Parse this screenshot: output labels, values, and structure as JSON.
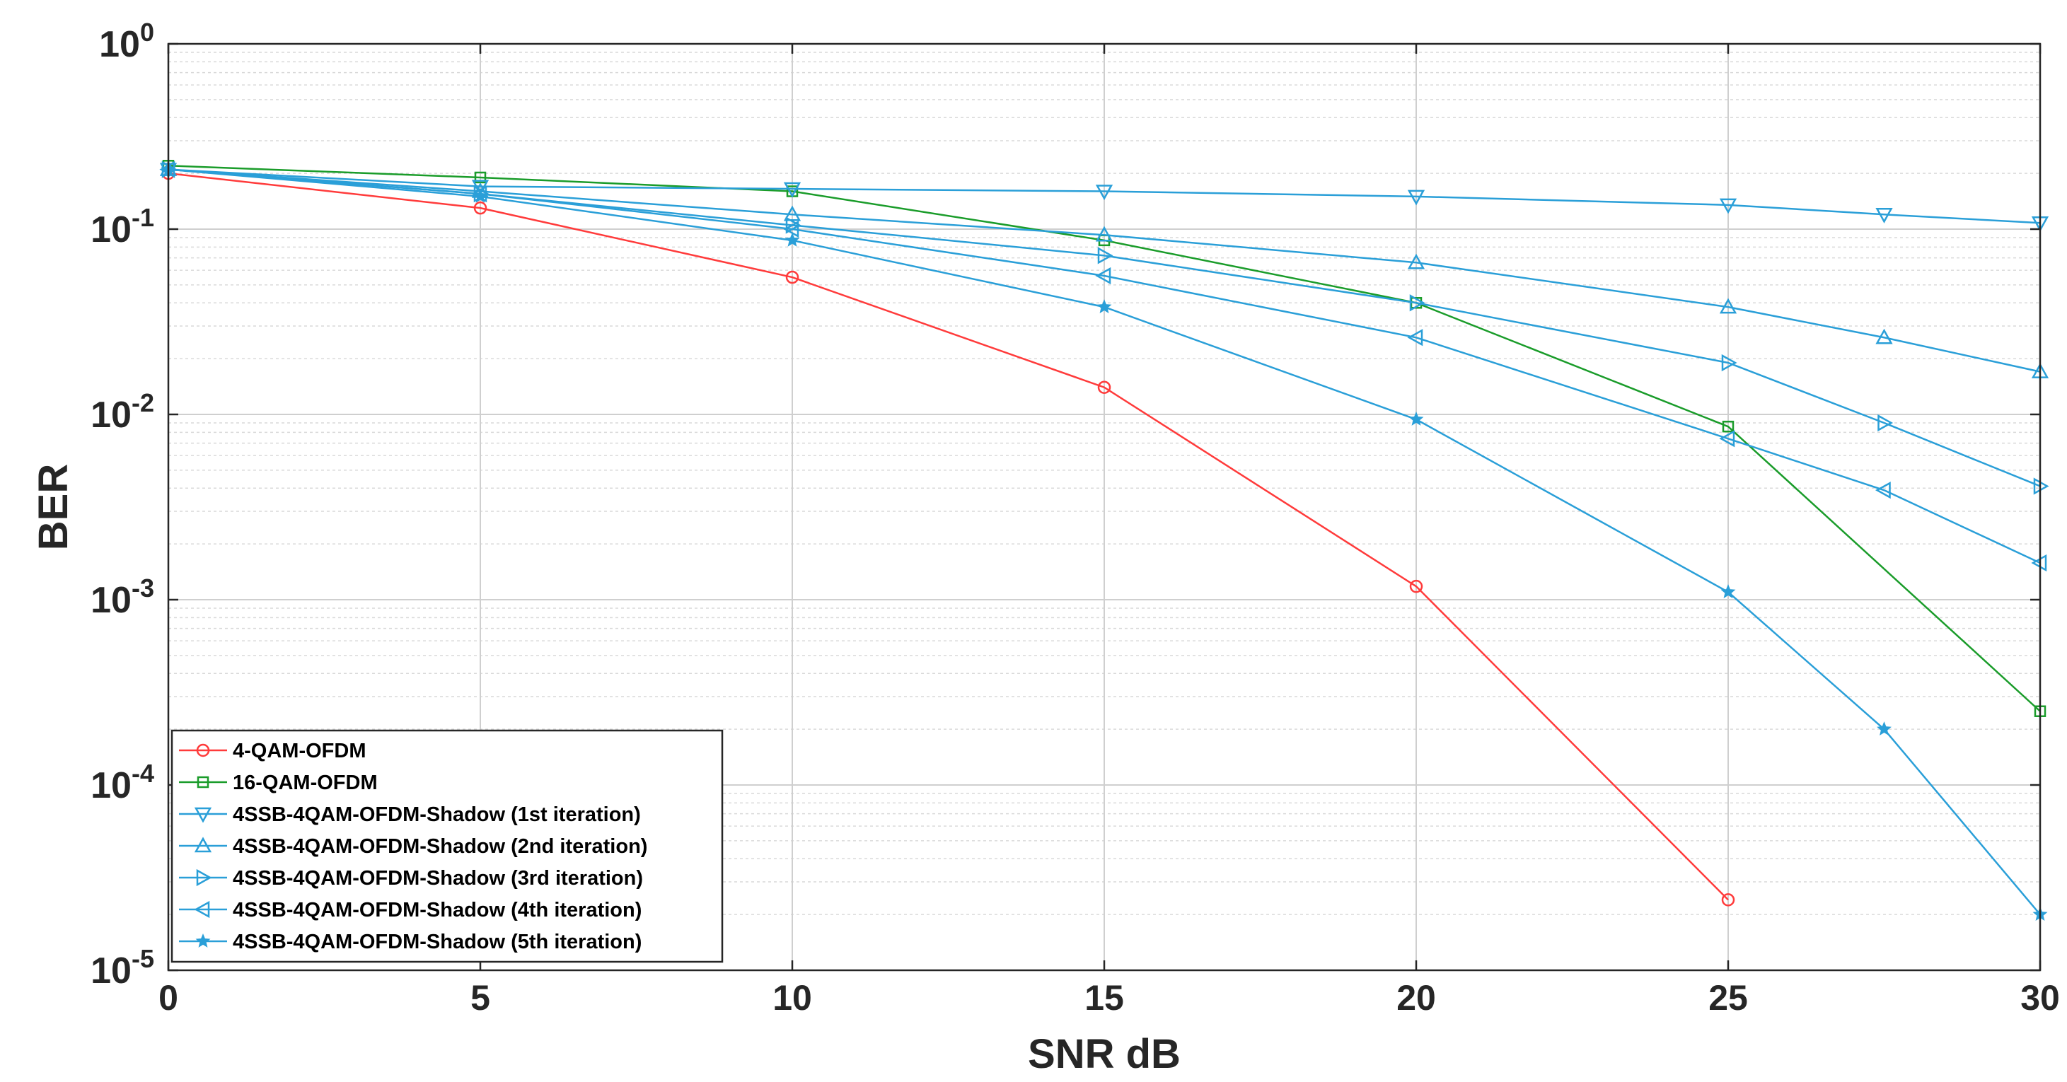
{
  "chart_data": {
    "type": "line",
    "title": "",
    "xlabel": "SNR dB",
    "ylabel": "BER",
    "xscale": "linear",
    "yscale": "log",
    "xlim": [
      0,
      30
    ],
    "ylim": [
      1e-05,
      1
    ],
    "xticks": [
      0,
      5,
      10,
      15,
      20,
      25,
      30
    ],
    "xtick_labels": [
      "0",
      "5",
      "10",
      "15",
      "20",
      "25",
      "30"
    ],
    "yticks": [
      1e-05,
      0.0001,
      0.001,
      0.01,
      0.1,
      1
    ],
    "ytick_labels": [
      {
        "base": "10",
        "exp": "-5"
      },
      {
        "base": "10",
        "exp": "-4"
      },
      {
        "base": "10",
        "exp": "-3"
      },
      {
        "base": "10",
        "exp": "-2"
      },
      {
        "base": "10",
        "exp": "-1"
      },
      {
        "base": "10",
        "exp": "0"
      }
    ],
    "grid": true,
    "minor_grid": true,
    "legend_position": "bottom-left",
    "series": [
      {
        "name": "4-QAM-OFDM",
        "color": "#ff3b3b",
        "marker": "circle",
        "x": [
          0,
          5,
          10,
          15,
          20,
          25
        ],
        "y": [
          0.2,
          0.13,
          0.055,
          0.014,
          0.00118,
          2.4e-05
        ]
      },
      {
        "name": "16-QAM-OFDM",
        "color": "#1a9c2a",
        "marker": "square",
        "x": [
          0,
          5,
          10,
          15,
          20,
          25,
          30
        ],
        "y": [
          0.22,
          0.19,
          0.16,
          0.087,
          0.04,
          0.0086,
          0.00025
        ]
      },
      {
        "name": "4SSB-4QAM-OFDM-Shadow (1st iteration)",
        "color": "#2a9fd8",
        "marker": "triangle-down",
        "x": [
          0,
          5,
          10,
          15,
          20,
          25,
          27.5,
          30
        ],
        "y": [
          0.21,
          0.17,
          0.165,
          0.16,
          0.15,
          0.135,
          0.12,
          0.108
        ]
      },
      {
        "name": "4SSB-4QAM-OFDM-Shadow (2nd iteration)",
        "color": "#2a9fd8",
        "marker": "triangle-up",
        "x": [
          0,
          5,
          10,
          15,
          20,
          25,
          27.5,
          30
        ],
        "y": [
          0.21,
          0.16,
          0.12,
          0.093,
          0.066,
          0.038,
          0.026,
          0.017
        ]
      },
      {
        "name": "4SSB-4QAM-OFDM-Shadow (3rd iteration)",
        "color": "#2a9fd8",
        "marker": "triangle-right",
        "x": [
          0,
          5,
          10,
          15,
          20,
          25,
          27.5,
          30
        ],
        "y": [
          0.21,
          0.155,
          0.105,
          0.072,
          0.04,
          0.019,
          0.009,
          0.0041
        ]
      },
      {
        "name": "4SSB-4QAM-OFDM-Shadow (4th iteration)",
        "color": "#2a9fd8",
        "marker": "triangle-left",
        "x": [
          0,
          5,
          10,
          15,
          20,
          25,
          27.5,
          30
        ],
        "y": [
          0.21,
          0.155,
          0.1,
          0.056,
          0.026,
          0.0074,
          0.0039,
          0.00158
        ]
      },
      {
        "name": "4SSB-4QAM-OFDM-Shadow (5th iteration)",
        "color": "#2a9fd8",
        "marker": "star",
        "x": [
          0,
          5,
          10,
          15,
          20,
          25,
          27.5,
          30
        ],
        "y": [
          0.21,
          0.15,
          0.087,
          0.038,
          0.0094,
          0.0011,
          0.0002,
          2e-05
        ]
      }
    ]
  }
}
